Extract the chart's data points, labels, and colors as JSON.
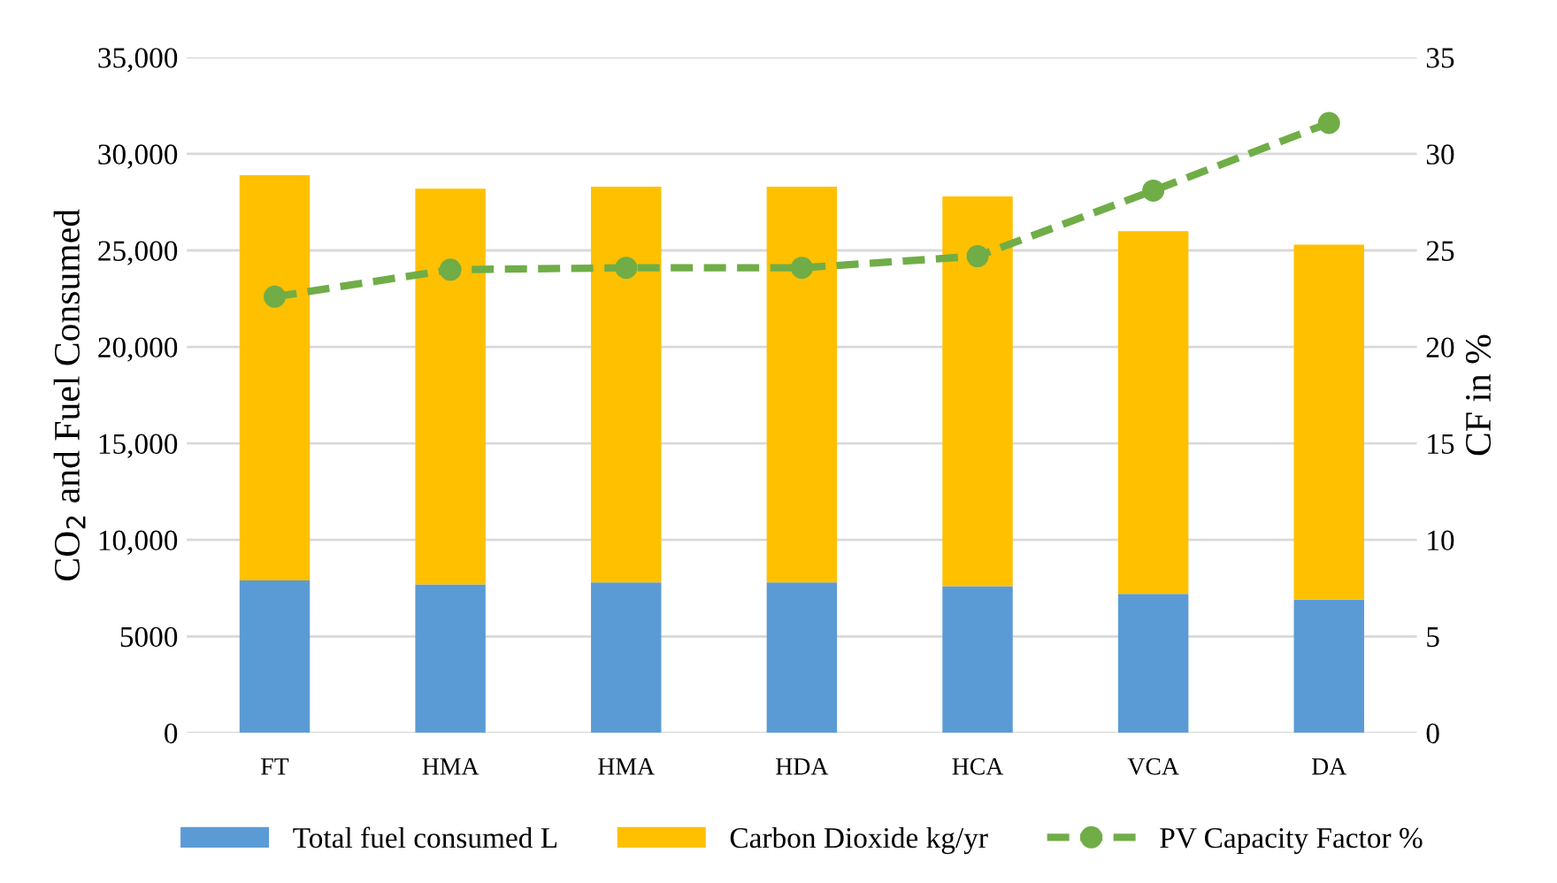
{
  "chart_data": {
    "type": "bar",
    "stacked": true,
    "categories": [
      "FT",
      "HMA",
      "HMA",
      "HDA",
      "HCA",
      "VCA",
      "DA"
    ],
    "series": [
      {
        "name": "Total fuel consumed L",
        "color": "#5b9bd5",
        "values": [
          7900,
          7700,
          7800,
          7800,
          7600,
          7200,
          6900
        ]
      },
      {
        "name": "Carbon Dioxide kg/yr",
        "color": "#ffc000",
        "values": [
          21000,
          20500,
          20500,
          20500,
          20200,
          18800,
          18400
        ]
      },
      {
        "name": "PV Capacity Factor %",
        "color": "#70ad47",
        "type": "line",
        "axis": "y2",
        "marker": "circle",
        "line_style": "dashed",
        "values": [
          22.6,
          24.0,
          24.1,
          24.1,
          24.7,
          28.1,
          31.6
        ]
      }
    ],
    "ylabel": "CO$_{2}$ and Fuel Consumed",
    "y2label": "CF in %",
    "ylim": [
      0,
      35000
    ],
    "yticks": [
      0,
      5000,
      {
        "value": 10000,
        "label": "10,000"
      },
      {
        "value": 15000,
        "label": "15,000"
      },
      {
        "value": 20000,
        "label": "20,000"
      },
      {
        "value": 25000,
        "label": "25,000"
      },
      {
        "value": 30000,
        "label": "30,000"
      },
      {
        "value": 35000,
        "label": "35,000"
      }
    ],
    "y2lim": [
      0,
      35
    ],
    "y2ticks": [
      0,
      5,
      10,
      15,
      20,
      25,
      30,
      35
    ],
    "grid": "y",
    "legend": "bottom"
  }
}
